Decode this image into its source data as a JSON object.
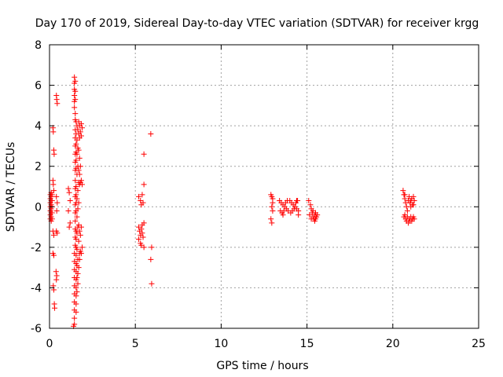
{
  "chart_data": {
    "type": "scatter",
    "title": "Day 170 of 2019, Sidereal Day-to-day VTEC variation (SDTVAR) for receiver krgg",
    "xlabel": "GPS time / hours",
    "ylabel": "SDTVAR / TECUs",
    "xlim": [
      0,
      25
    ],
    "ylim": [
      -6,
      8
    ],
    "xticks": [
      0,
      5,
      10,
      15,
      20,
      25
    ],
    "yticks": [
      -6,
      -4,
      -2,
      0,
      2,
      4,
      6,
      8
    ],
    "grid": true,
    "marker": "+",
    "color": "#ff0000",
    "series": [
      {
        "name": "SDTVAR",
        "points": [
          [
            0.05,
            0.6
          ],
          [
            0.05,
            0.4
          ],
          [
            0.05,
            0.2
          ],
          [
            0.05,
            0.0
          ],
          [
            0.05,
            -0.2
          ],
          [
            0.05,
            -0.4
          ],
          [
            0.05,
            -0.6
          ],
          [
            0.1,
            0.7
          ],
          [
            0.1,
            0.5
          ],
          [
            0.1,
            0.3
          ],
          [
            0.1,
            0.1
          ],
          [
            0.1,
            -0.1
          ],
          [
            0.1,
            -0.3
          ],
          [
            0.1,
            -0.5
          ],
          [
            0.1,
            -0.7
          ],
          [
            0.15,
            0.6
          ],
          [
            0.15,
            0.3
          ],
          [
            0.15,
            0.0
          ],
          [
            0.15,
            -0.3
          ],
          [
            0.15,
            -0.6
          ],
          [
            0.2,
            3.9
          ],
          [
            0.22,
            3.7
          ],
          [
            0.25,
            2.8
          ],
          [
            0.27,
            2.6
          ],
          [
            0.2,
            1.3
          ],
          [
            0.22,
            1.1
          ],
          [
            0.25,
            0.8
          ],
          [
            0.2,
            -1.2
          ],
          [
            0.25,
            -1.4
          ],
          [
            0.2,
            -2.3
          ],
          [
            0.25,
            -2.4
          ],
          [
            0.22,
            -3.9
          ],
          [
            0.25,
            -4.1
          ],
          [
            0.28,
            -4.8
          ],
          [
            0.3,
            -5.0
          ],
          [
            0.4,
            5.5
          ],
          [
            0.42,
            5.3
          ],
          [
            0.45,
            5.1
          ],
          [
            0.4,
            0.5
          ],
          [
            0.45,
            0.2
          ],
          [
            0.42,
            -0.2
          ],
          [
            0.4,
            -1.2
          ],
          [
            0.45,
            -1.3
          ],
          [
            0.38,
            -3.2
          ],
          [
            0.42,
            -3.4
          ],
          [
            0.4,
            -3.6
          ],
          [
            1.1,
            0.9
          ],
          [
            1.15,
            0.7
          ],
          [
            1.2,
            0.3
          ],
          [
            1.1,
            -0.2
          ],
          [
            1.2,
            -0.8
          ],
          [
            1.15,
            -1.0
          ],
          [
            1.45,
            6.4
          ],
          [
            1.45,
            6.1
          ],
          [
            1.45,
            5.8
          ],
          [
            1.45,
            5.5
          ],
          [
            1.45,
            5.2
          ],
          [
            1.45,
            4.9
          ],
          [
            1.5,
            6.2
          ],
          [
            1.5,
            5.7
          ],
          [
            1.5,
            5.3
          ],
          [
            1.5,
            4.6
          ],
          [
            1.5,
            4.3
          ],
          [
            1.5,
            3.8
          ],
          [
            1.5,
            3.4
          ],
          [
            1.5,
            3.0
          ],
          [
            1.5,
            2.6
          ],
          [
            1.5,
            2.2
          ],
          [
            1.5,
            1.8
          ],
          [
            1.5,
            1.3
          ],
          [
            1.5,
            0.9
          ],
          [
            1.5,
            0.5
          ],
          [
            1.5,
            0.1
          ],
          [
            1.5,
            -0.3
          ],
          [
            1.5,
            -0.7
          ],
          [
            1.5,
            -1.1
          ],
          [
            1.5,
            -1.5
          ],
          [
            1.5,
            -1.9
          ],
          [
            1.45,
            -2.3
          ],
          [
            1.45,
            -2.7
          ],
          [
            1.45,
            -3.1
          ],
          [
            1.45,
            -3.5
          ],
          [
            1.45,
            -3.9
          ],
          [
            1.45,
            -4.3
          ],
          [
            1.45,
            -4.7
          ],
          [
            1.45,
            -5.1
          ],
          [
            1.45,
            -5.5
          ],
          [
            1.45,
            -5.8
          ],
          [
            1.4,
            -5.9
          ],
          [
            1.55,
            4.2
          ],
          [
            1.55,
            3.6
          ],
          [
            1.55,
            3.1
          ],
          [
            1.55,
            2.7
          ],
          [
            1.55,
            2.3
          ],
          [
            1.55,
            1.9
          ],
          [
            1.55,
            1.0
          ],
          [
            1.55,
            0.6
          ],
          [
            1.55,
            0.2
          ],
          [
            1.55,
            -0.2
          ],
          [
            1.55,
            -1.2
          ],
          [
            1.55,
            -1.6
          ],
          [
            1.55,
            -2.0
          ],
          [
            1.55,
            -2.4
          ],
          [
            1.55,
            -2.8
          ],
          [
            1.55,
            -3.2
          ],
          [
            1.55,
            -3.6
          ],
          [
            1.55,
            -4.0
          ],
          [
            1.55,
            -4.4
          ],
          [
            1.55,
            -4.8
          ],
          [
            1.55,
            -5.2
          ],
          [
            1.6,
            4.0
          ],
          [
            1.6,
            3.3
          ],
          [
            1.6,
            2.6
          ],
          [
            1.6,
            1.6
          ],
          [
            1.6,
            0.4
          ],
          [
            1.6,
            -0.5
          ],
          [
            1.6,
            -1.3
          ],
          [
            1.6,
            -2.1
          ],
          [
            1.6,
            -2.9
          ],
          [
            1.6,
            -3.5
          ],
          [
            1.6,
            -4.2
          ],
          [
            1.65,
            3.8
          ],
          [
            1.65,
            2.9
          ],
          [
            1.65,
            2.0
          ],
          [
            1.65,
            0.8
          ],
          [
            1.65,
            -0.1
          ],
          [
            1.65,
            -1.0
          ],
          [
            1.65,
            -2.6
          ],
          [
            1.65,
            -3.3
          ],
          [
            1.65,
            -3.8
          ],
          [
            1.7,
            4.2
          ],
          [
            1.7,
            3.6
          ],
          [
            1.7,
            2.8
          ],
          [
            1.7,
            1.8
          ],
          [
            1.7,
            1.2
          ],
          [
            1.7,
            0.2
          ],
          [
            1.7,
            -0.9
          ],
          [
            1.7,
            -1.7
          ],
          [
            1.7,
            -3.0
          ],
          [
            1.75,
            4.0
          ],
          [
            1.75,
            3.4
          ],
          [
            1.75,
            2.4
          ],
          [
            1.75,
            1.6
          ],
          [
            1.75,
            1.1
          ],
          [
            1.75,
            -1.2
          ],
          [
            1.75,
            -2.3
          ],
          [
            1.75,
            -2.6
          ],
          [
            1.8,
            3.7
          ],
          [
            1.8,
            2.0
          ],
          [
            1.8,
            1.2
          ],
          [
            1.8,
            -1.4
          ],
          [
            1.8,
            -2.2
          ],
          [
            1.85,
            4.1
          ],
          [
            1.85,
            3.5
          ],
          [
            1.85,
            1.3
          ],
          [
            1.85,
            -1.0
          ],
          [
            1.85,
            -2.3
          ],
          [
            1.9,
            3.9
          ],
          [
            1.9,
            1.1
          ],
          [
            1.9,
            -2.0
          ],
          [
            5.2,
            0.5
          ],
          [
            5.3,
            0.3
          ],
          [
            5.35,
            0.1
          ],
          [
            5.2,
            -1.0
          ],
          [
            5.25,
            -1.2
          ],
          [
            5.3,
            -1.4
          ],
          [
            5.2,
            -1.6
          ],
          [
            5.3,
            -1.8
          ],
          [
            5.35,
            -1.1
          ],
          [
            5.4,
            -1.3
          ],
          [
            5.4,
            -0.9
          ],
          [
            5.45,
            -1.5
          ],
          [
            5.35,
            -1.9
          ],
          [
            5.4,
            0.6
          ],
          [
            5.45,
            0.2
          ],
          [
            5.5,
            -0.8
          ],
          [
            5.5,
            -2.0
          ],
          [
            5.5,
            2.6
          ],
          [
            5.5,
            1.1
          ],
          [
            5.9,
            3.6
          ],
          [
            5.95,
            -2.0
          ],
          [
            5.9,
            -2.6
          ],
          [
            5.95,
            -3.8
          ],
          [
            12.9,
            0.6
          ],
          [
            12.95,
            0.5
          ],
          [
            13.0,
            0.4
          ],
          [
            13.0,
            0.2
          ],
          [
            12.95,
            0.0
          ],
          [
            13.0,
            -0.2
          ],
          [
            12.9,
            -0.6
          ],
          [
            12.95,
            -0.8
          ],
          [
            13.4,
            0.3
          ],
          [
            13.5,
            0.2
          ],
          [
            13.6,
            0.1
          ],
          [
            13.7,
            0.0
          ],
          [
            13.8,
            -0.1
          ],
          [
            13.9,
            -0.2
          ],
          [
            13.45,
            -0.2
          ],
          [
            13.55,
            -0.3
          ],
          [
            13.65,
            -0.2
          ],
          [
            13.75,
            0.2
          ],
          [
            13.85,
            0.3
          ],
          [
            14.0,
            0.3
          ],
          [
            14.1,
            0.2
          ],
          [
            14.2,
            0.1
          ],
          [
            14.3,
            0.0
          ],
          [
            14.4,
            -0.1
          ],
          [
            14.5,
            -0.2
          ],
          [
            14.05,
            -0.3
          ],
          [
            14.15,
            -0.2
          ],
          [
            14.25,
            -0.1
          ],
          [
            14.35,
            0.2
          ],
          [
            14.45,
            0.3
          ],
          [
            14.5,
            -0.4
          ],
          [
            14.4,
            0.3
          ],
          [
            13.6,
            -0.4
          ],
          [
            15.1,
            0.3
          ],
          [
            15.2,
            0.1
          ],
          [
            15.25,
            -0.1
          ],
          [
            15.3,
            -0.3
          ],
          [
            15.35,
            -0.5
          ],
          [
            15.4,
            -0.6
          ],
          [
            15.45,
            -0.4
          ],
          [
            15.5,
            -0.3
          ],
          [
            15.55,
            -0.5
          ],
          [
            15.6,
            -0.4
          ],
          [
            15.25,
            -0.6
          ],
          [
            15.35,
            -0.2
          ],
          [
            15.45,
            -0.7
          ],
          [
            15.15,
            -0.4
          ],
          [
            15.5,
            -0.6
          ],
          [
            20.6,
            0.8
          ],
          [
            20.65,
            0.6
          ],
          [
            20.7,
            0.4
          ],
          [
            20.75,
            0.2
          ],
          [
            20.8,
            0.0
          ],
          [
            20.85,
            -0.2
          ],
          [
            20.9,
            0.3
          ],
          [
            20.95,
            0.5
          ],
          [
            21.0,
            0.2
          ],
          [
            21.05,
            0.0
          ],
          [
            21.1,
            0.4
          ],
          [
            21.15,
            0.1
          ],
          [
            21.2,
            0.5
          ],
          [
            21.25,
            0.3
          ],
          [
            20.7,
            -0.4
          ],
          [
            20.75,
            -0.6
          ],
          [
            20.8,
            -0.7
          ],
          [
            20.85,
            -0.5
          ],
          [
            20.9,
            -0.8
          ],
          [
            20.95,
            -0.6
          ],
          [
            21.0,
            -0.7
          ],
          [
            21.05,
            -0.5
          ],
          [
            21.1,
            -0.7
          ],
          [
            21.15,
            -0.6
          ],
          [
            21.2,
            -0.5
          ],
          [
            21.25,
            -0.6
          ],
          [
            20.65,
            -0.5
          ],
          [
            20.7,
            0.6
          ],
          [
            21.05,
            0.3
          ],
          [
            21.2,
            0.1
          ]
        ]
      }
    ]
  }
}
